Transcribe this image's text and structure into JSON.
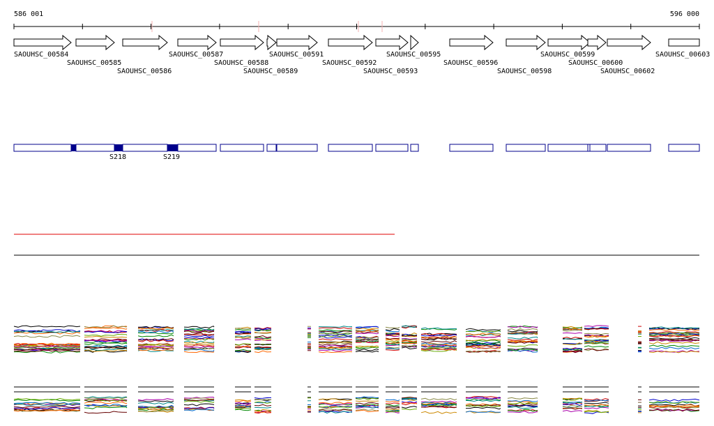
{
  "ruler": {
    "start": "586 001",
    "end": "596 000"
  },
  "genes": [
    "SAOUHSC_00584",
    "SAOUHSC_00585",
    "SAOUHSC_00586",
    "SAOUHSC_00587",
    "SAOUHSC_00588",
    "SAOUHSC_00589",
    "SAOUHSC_00591",
    "SAOUHSC_00592",
    "SAOUHSC_00593",
    "SAOUHSC_00595",
    "SAOUHSC_00596",
    "SAOUHSC_00598",
    "SAOUHSC_00599",
    "SAOUHSC_00600",
    "SAOUHSC_00602",
    "SAOUHSC_00603"
  ],
  "features": [
    "S218",
    "S219"
  ]
}
